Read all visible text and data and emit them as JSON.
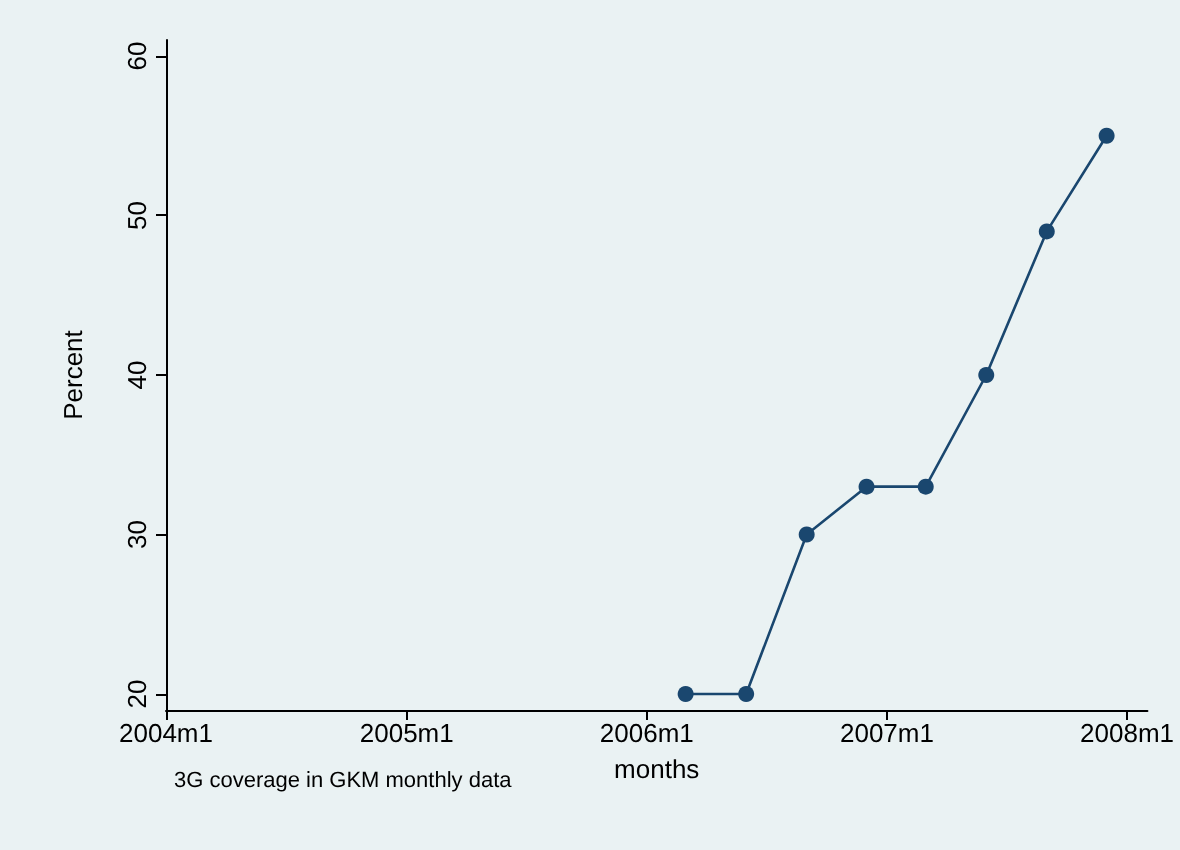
{
  "chart_data": {
    "type": "line",
    "xlabel": "months",
    "ylabel": "Percent",
    "x": [
      "2006-03",
      "2006-06",
      "2006-09",
      "2006-12",
      "2007-03",
      "2007-06",
      "2007-09",
      "2007-12"
    ],
    "series": [
      {
        "color": "#1a476f",
        "values": [
          20,
          20,
          30,
          33,
          33,
          40,
          49,
          55
        ]
      }
    ],
    "xlim": [
      "2004-01",
      "2008-02"
    ],
    "xticks": [
      {
        "value": "2004-01",
        "label": "2004m1"
      },
      {
        "value": "2005-01",
        "label": "2005m1"
      },
      {
        "value": "2006-01",
        "label": "2006m1"
      },
      {
        "value": "2007-01",
        "label": "2007m1"
      },
      {
        "value": "2008-01",
        "label": "2008m1"
      }
    ],
    "ylim": [
      19,
      61
    ],
    "yticks": [
      20,
      30,
      40,
      50,
      60
    ],
    "marker": "circle",
    "line_style": "solid",
    "annotations": [
      "3G coverage in GKM monthly data"
    ]
  }
}
